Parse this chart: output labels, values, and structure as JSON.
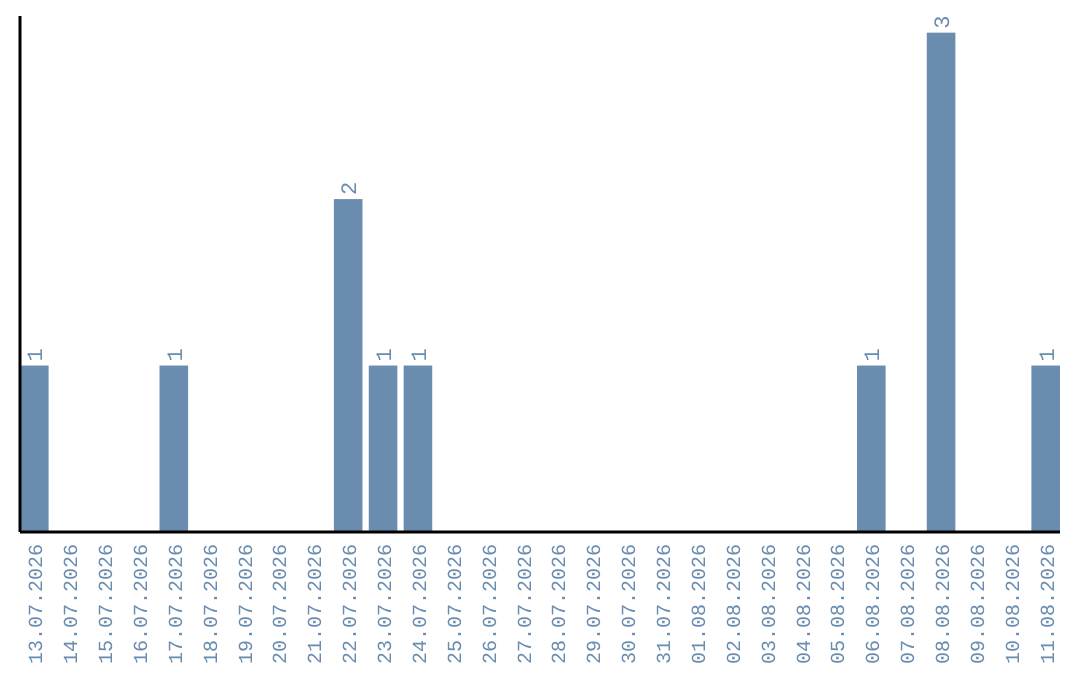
{
  "chart_data": {
    "type": "bar",
    "categories": [
      "13.07.2026",
      "14.07.2026",
      "15.07.2026",
      "16.07.2026",
      "17.07.2026",
      "18.07.2026",
      "19.07.2026",
      "20.07.2026",
      "21.07.2026",
      "22.07.2026",
      "23.07.2026",
      "24.07.2026",
      "25.07.2026",
      "26.07.2026",
      "27.07.2026",
      "28.07.2026",
      "29.07.2026",
      "30.07.2026",
      "31.07.2026",
      "01.08.2026",
      "02.08.2026",
      "03.08.2026",
      "04.08.2026",
      "05.08.2026",
      "06.08.2026",
      "07.08.2026",
      "08.08.2026",
      "09.08.2026",
      "10.08.2026",
      "11.08.2026"
    ],
    "values": [
      1,
      0,
      0,
      0,
      1,
      0,
      0,
      0,
      0,
      2,
      1,
      1,
      0,
      0,
      0,
      0,
      0,
      0,
      0,
      0,
      0,
      0,
      0,
      0,
      1,
      0,
      3,
      0,
      0,
      1
    ],
    "value_labels": [
      "1",
      null,
      null,
      null,
      "1",
      null,
      null,
      null,
      null,
      "2",
      "1",
      "1",
      null,
      null,
      null,
      null,
      null,
      null,
      null,
      null,
      null,
      null,
      null,
      null,
      "1",
      null,
      "3",
      null,
      null,
      "1"
    ],
    "color": "#6a8caf",
    "ylim": [
      0,
      3.1
    ],
    "tick_labels": "x"
  }
}
